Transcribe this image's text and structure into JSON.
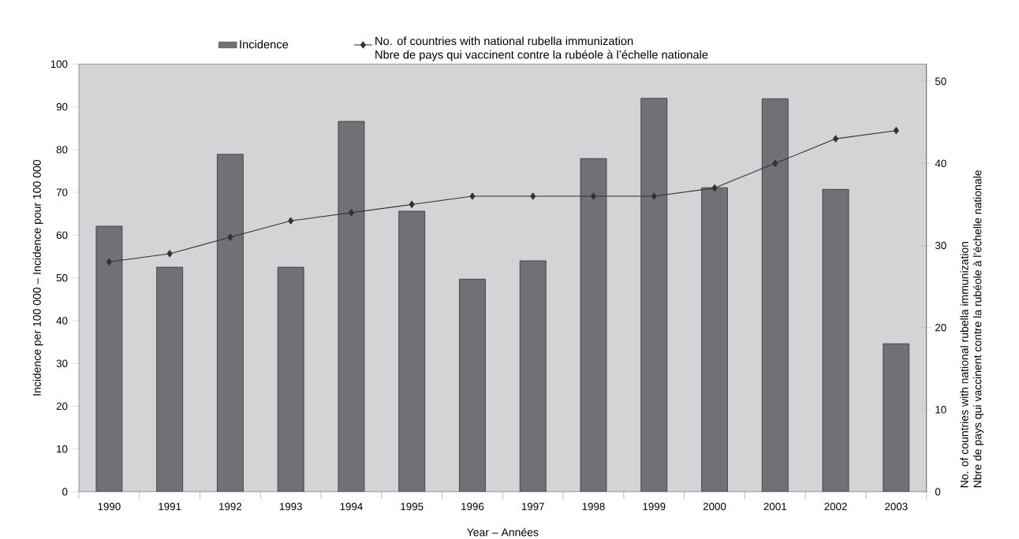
{
  "chart_data": {
    "type": "bar",
    "categories": [
      "1990",
      "1991",
      "1992",
      "1993",
      "1994",
      "1995",
      "1996",
      "1997",
      "1998",
      "1999",
      "2000",
      "2001",
      "2002",
      "2003"
    ],
    "xlabel": "Year – Années",
    "ylabel": "Incidence per 100 000 – Incidence pour 100 000",
    "y2label": "No. of countries with national rubella immunization Nbre de pays qui vaccinent contre la rubéole à l’échelle nationale",
    "series": [
      {
        "name": "Incidence",
        "color": "#707175",
        "values": [
          62.1,
          52.5,
          78.9,
          52.5,
          86.6,
          65.6,
          49.7,
          54.0,
          77.9,
          92.0,
          71.1,
          91.9,
          70.7,
          34.6
        ]
      },
      {
        "name": "No. of countries with national rubella immunization Nbre de pays qui vaccinent contre la rubéole à l’échelle nationale",
        "type": "line",
        "axis": "y2",
        "color": "#333333",
        "values": [
          28,
          29,
          31,
          33,
          34,
          35,
          36,
          36,
          36,
          36,
          37,
          40,
          43,
          44
        ]
      }
    ],
    "ylim": [
      0,
      100
    ],
    "yticks": [
      0,
      10,
      20,
      30,
      40,
      50,
      60,
      70,
      80,
      90,
      100
    ],
    "y2lim": [
      0,
      52.1
    ],
    "y2ticks": [
      0,
      10,
      20,
      30,
      40,
      50
    ],
    "legend": "top",
    "marker": "diamond",
    "grid": false
  }
}
